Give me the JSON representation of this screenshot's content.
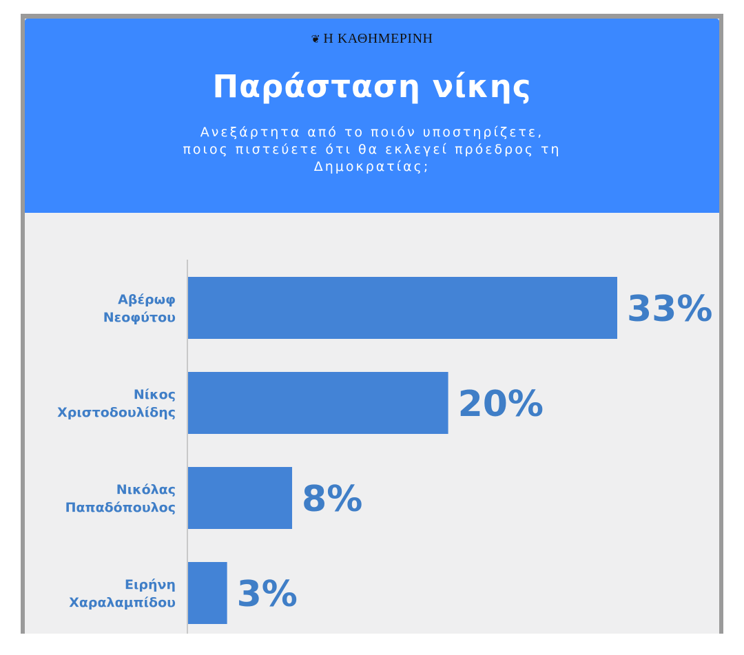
{
  "brand": {
    "mark": "❦",
    "name": "Η ΚΑΘΗΜΕΡΙΝΗ"
  },
  "title": "Παράσταση νίκης",
  "subtitle_lines": [
    "Ανεξάρτητα από το ποιόν υποστηρίζετε,",
    "ποιος πιστεύετε ότι θα εκλεγεί πρόεδρος τη",
    "Δημοκρατίας;"
  ],
  "colors": {
    "header_bg": "#3b88ff",
    "bar": "#4383d6",
    "label": "#3f7ec7",
    "chart_bg": "#efeff0"
  },
  "chart_data": {
    "type": "bar",
    "orientation": "horizontal",
    "title": "Παράσταση νίκης",
    "categories": [
      [
        "Αβέρωφ",
        "Νεοφύτου"
      ],
      [
        "Νίκος",
        "Χριστοδουλίδης"
      ],
      [
        "Νικόλας",
        "Παπαδόπουλος"
      ],
      [
        "Ειρήνη",
        "Χαραλαμπίδου"
      ]
    ],
    "values": [
      33,
      20,
      8,
      3
    ],
    "value_labels": [
      "33%",
      "20%",
      "8%",
      "3%"
    ],
    "xlim": [
      0,
      33
    ],
    "grid": false,
    "legend": "none"
  }
}
